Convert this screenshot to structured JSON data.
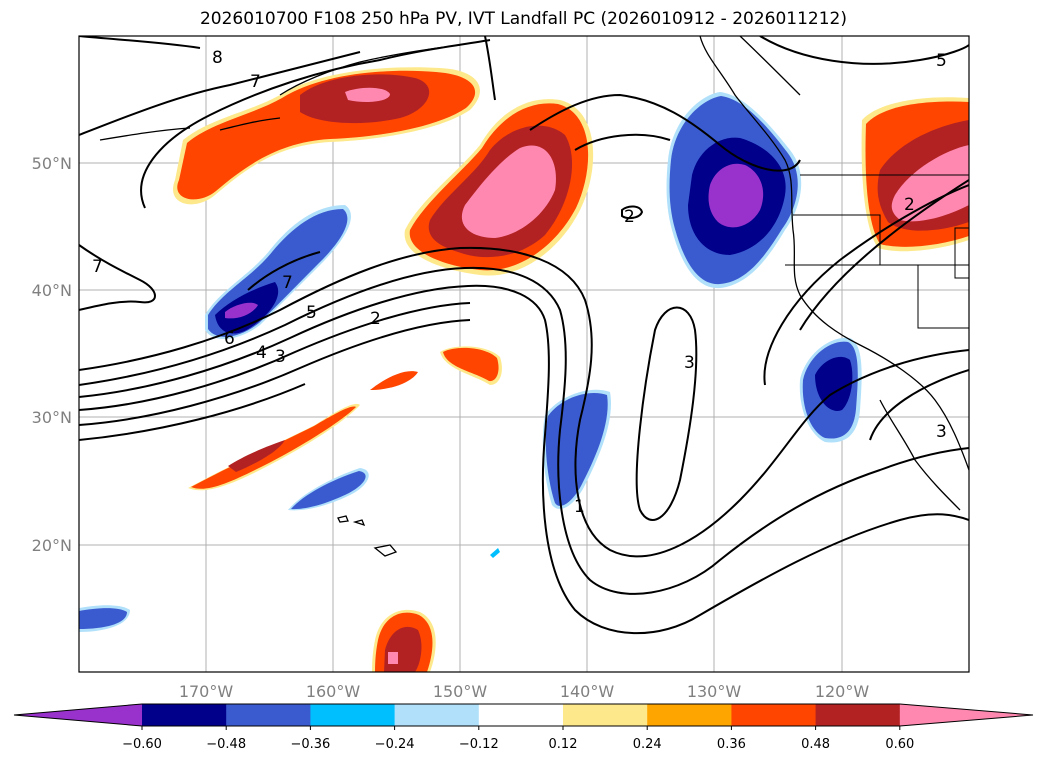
{
  "title": "2026010700 F108 250 hPa PV, IVT Landfall PC (2026010912 - 2026011212)",
  "map": {
    "lon_ticks": [
      "170°W",
      "160°W",
      "150°W",
      "140°W",
      "130°W",
      "120°W"
    ],
    "lat_ticks": [
      "50°N",
      "40°N",
      "30°N",
      "20°N"
    ],
    "contour_labels": [
      "8",
      "7",
      "7",
      "7",
      "6",
      "5",
      "4",
      "3",
      "2",
      "2",
      "1",
      "3",
      "5",
      "3",
      "2"
    ]
  },
  "colorbar": {
    "colors": [
      "#9932cc",
      "#00008b",
      "#3a5bd0",
      "#00bfff",
      "#b0e0fa",
      "#ffffff",
      "#fde98c",
      "#ffa500",
      "#ff4500",
      "#b22222",
      "#ff88b0"
    ],
    "labels": [
      "−0.60",
      "−0.48",
      "−0.36",
      "−0.24",
      "−0.12",
      "0.12",
      "0.24",
      "0.36",
      "0.48",
      "0.60"
    ]
  }
}
